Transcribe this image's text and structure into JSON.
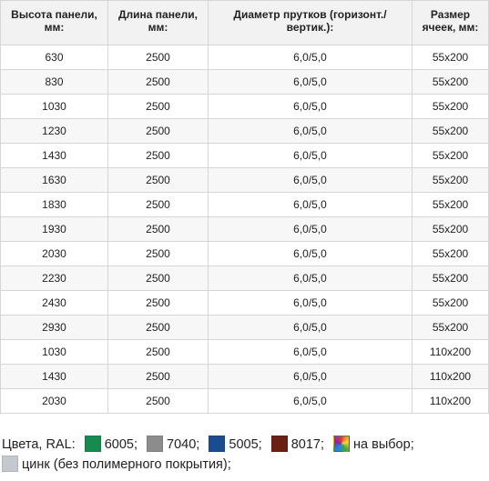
{
  "table": {
    "headers": [
      "Высота  панели, мм:",
      "Длина панели, мм:",
      "Диаметр прутков (горизонт./ вертик.):",
      "Размер ячеек, мм:"
    ],
    "rows": [
      [
        "630",
        "2500",
        "6,0/5,0",
        "55x200"
      ],
      [
        "830",
        "2500",
        "6,0/5,0",
        "55x200"
      ],
      [
        "1030",
        "2500",
        "6,0/5,0",
        "55x200"
      ],
      [
        "1230",
        "2500",
        "6,0/5,0",
        "55x200"
      ],
      [
        "1430",
        "2500",
        "6,0/5,0",
        "55x200"
      ],
      [
        "1630",
        "2500",
        "6,0/5,0",
        "55x200"
      ],
      [
        "1830",
        "2500",
        "6,0/5,0",
        "55x200"
      ],
      [
        "1930",
        "2500",
        "6,0/5,0",
        "55x200"
      ],
      [
        "2030",
        "2500",
        "6,0/5,0",
        "55x200"
      ],
      [
        "2230",
        "2500",
        "6,0/5,0",
        "55x200"
      ],
      [
        "2430",
        "2500",
        "6,0/5,0",
        "55x200"
      ],
      [
        "2930",
        "2500",
        "6,0/5,0",
        "55x200"
      ],
      [
        "1030",
        "2500",
        "6,0/5,0",
        "110x200"
      ],
      [
        "1430",
        "2500",
        "6,0/5,0",
        "110x200"
      ],
      [
        "2030",
        "2500",
        "6,0/5,0",
        "110x200"
      ]
    ]
  },
  "colors": {
    "label": "Цвета, RAL:",
    "items": [
      {
        "swatch": "#178a4f",
        "text": "6005;"
      },
      {
        "swatch": "#8c8c8c",
        "text": "7040;"
      },
      {
        "swatch": "#1a4d8f",
        "text": "5005;"
      },
      {
        "swatch": "#6b2015",
        "text": "8017;"
      },
      {
        "swatch": "multicolor",
        "text": "на выбор;"
      },
      {
        "swatch": "#c4c8cf",
        "text": "цинк (без полимерного покрытия);"
      }
    ]
  }
}
